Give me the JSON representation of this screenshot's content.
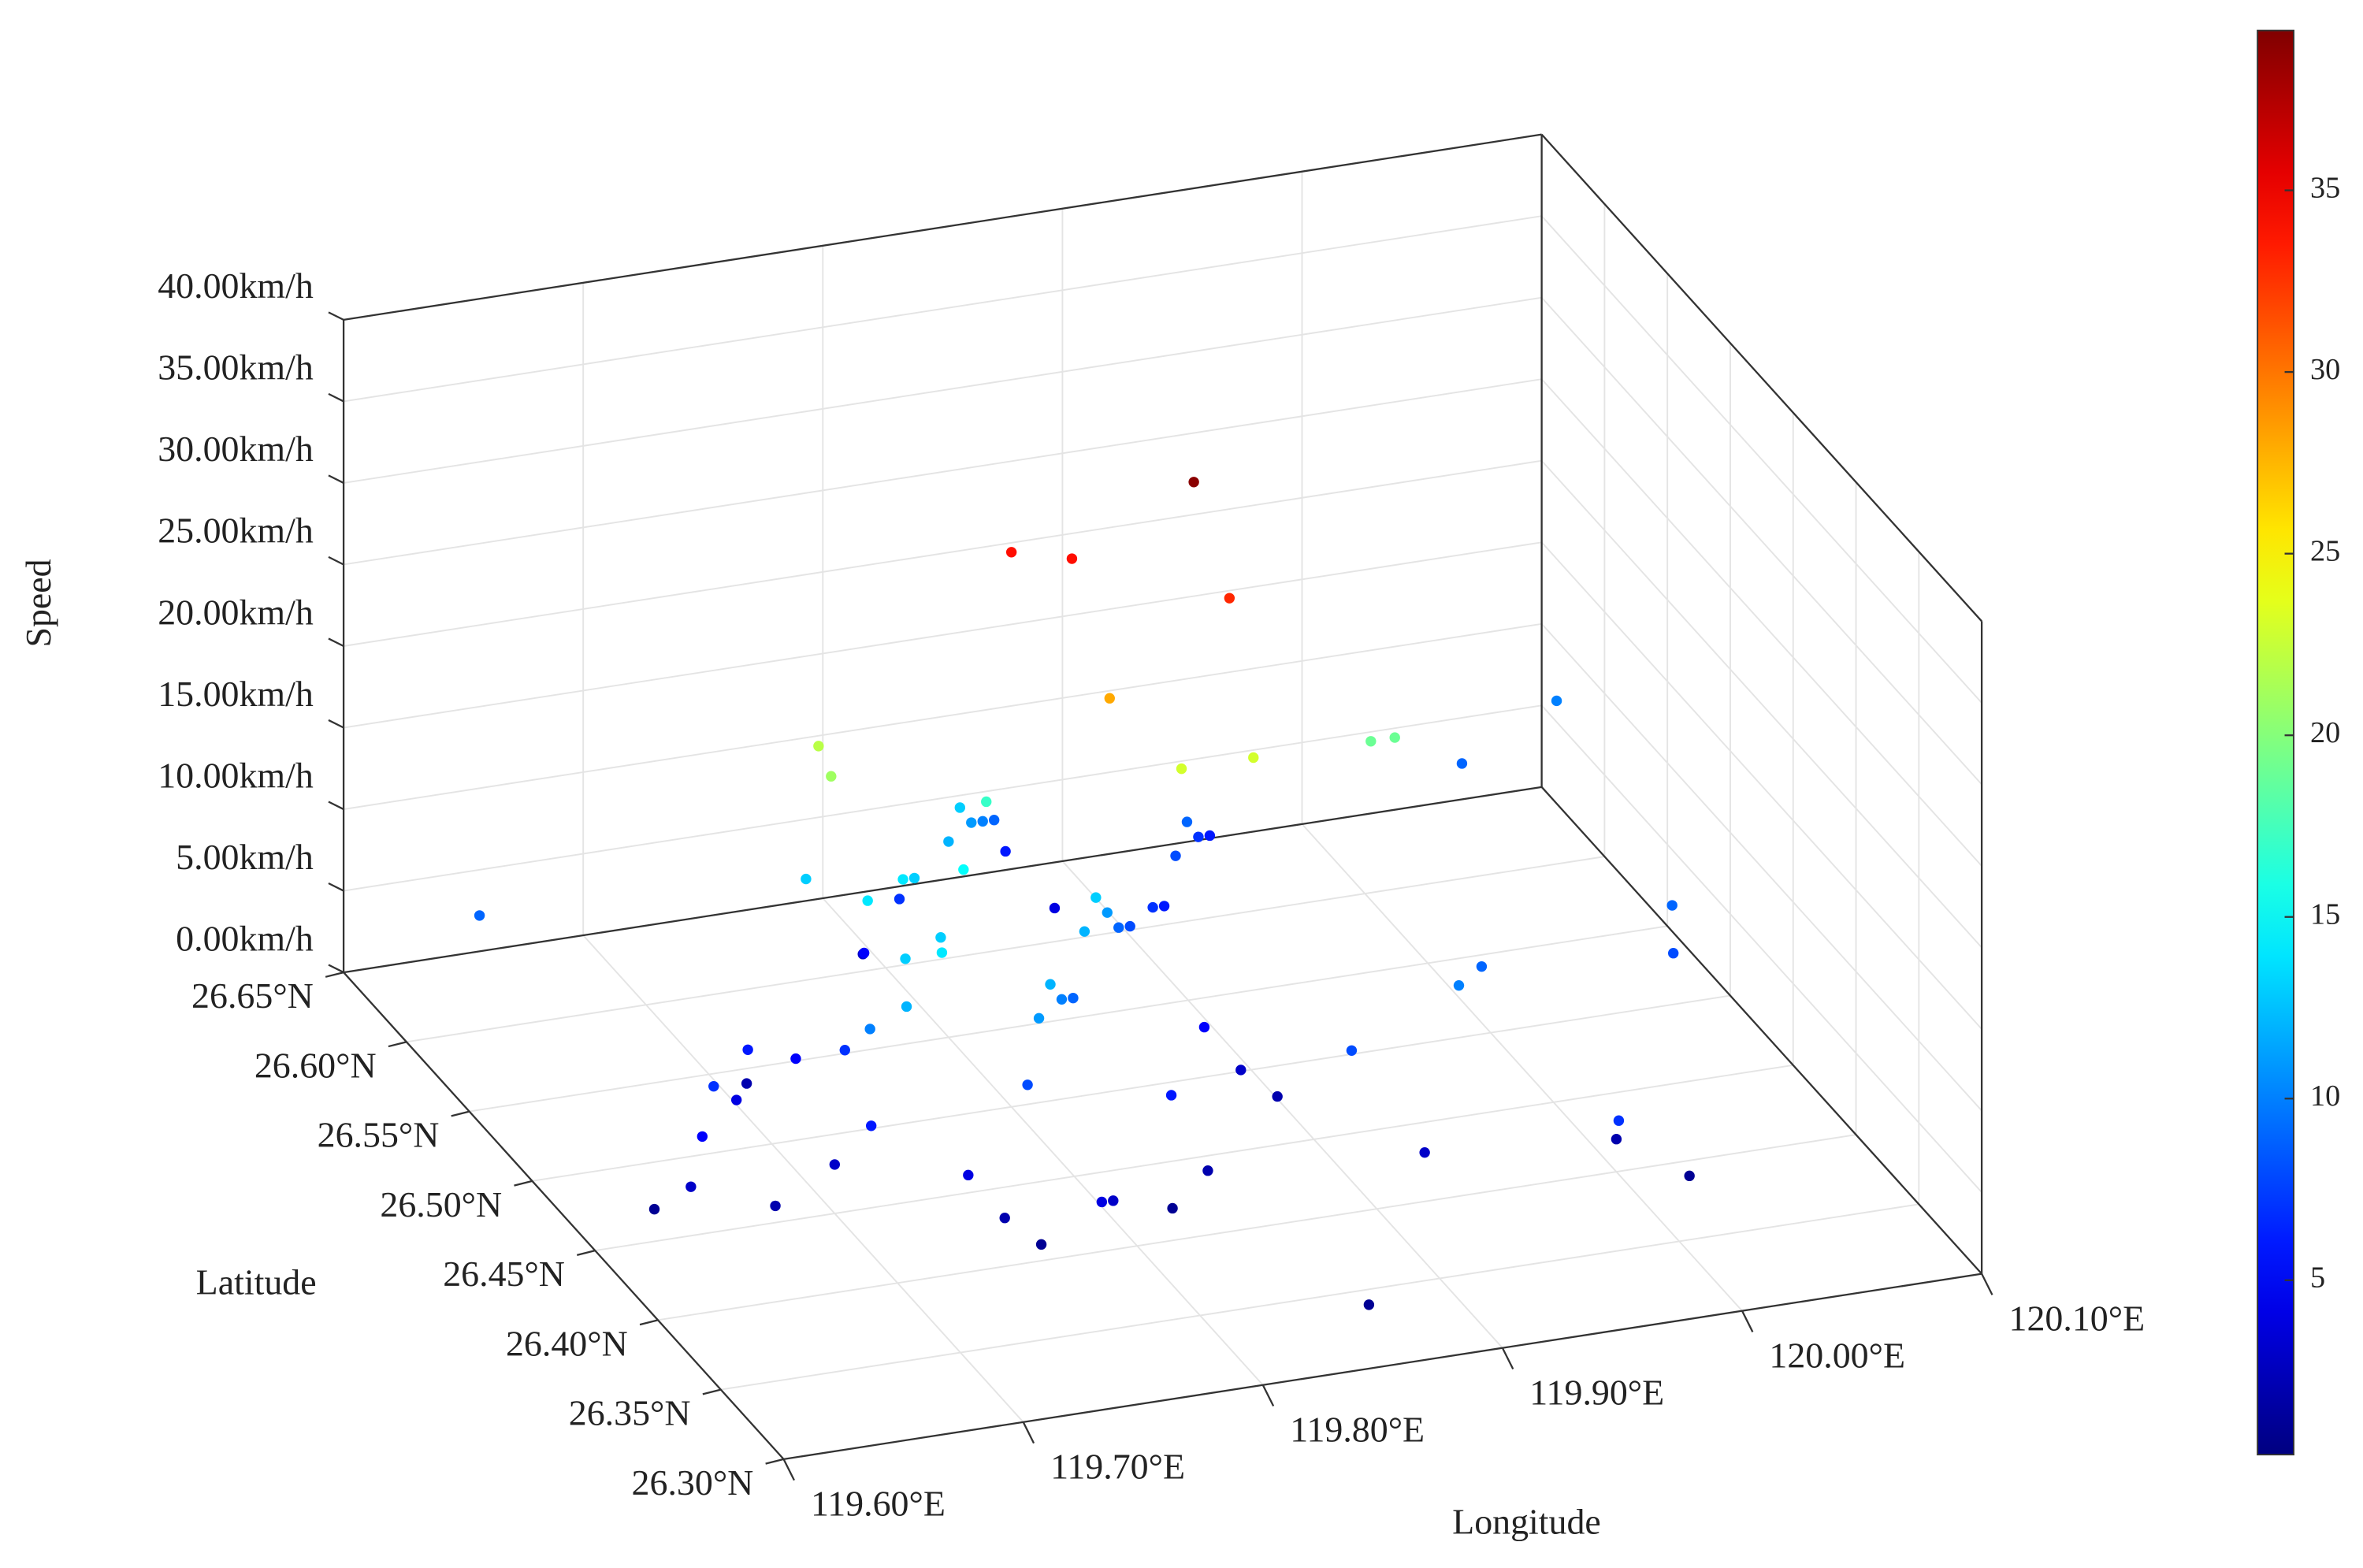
{
  "chart_data": {
    "type": "scatter3d",
    "x_label": "Longitude",
    "y_label": "Latitude",
    "z_label": "Speed",
    "colormap": "jet",
    "grid": true,
    "xlim": [
      119.6,
      120.1
    ],
    "xticks": [
      {
        "value": 119.6,
        "label": "119.60°E"
      },
      {
        "value": 119.7,
        "label": "119.70°E"
      },
      {
        "value": 119.8,
        "label": "119.80°E"
      },
      {
        "value": 119.9,
        "label": "119.90°E"
      },
      {
        "value": 120.0,
        "label": "120.00°E"
      },
      {
        "value": 120.1,
        "label": "120.10°E"
      }
    ],
    "ylim": [
      26.3,
      26.65
    ],
    "yticks": [
      {
        "value": 26.3,
        "label": "26.30°N"
      },
      {
        "value": 26.35,
        "label": "26.35°N"
      },
      {
        "value": 26.4,
        "label": "26.40°N"
      },
      {
        "value": 26.45,
        "label": "26.45°N"
      },
      {
        "value": 26.5,
        "label": "26.50°N"
      },
      {
        "value": 26.55,
        "label": "26.55°N"
      },
      {
        "value": 26.6,
        "label": "26.60°N"
      },
      {
        "value": 26.65,
        "label": "26.65°N"
      }
    ],
    "zlim": [
      0,
      40
    ],
    "zticks": [
      {
        "value": 0,
        "label": "0.00km/h"
      },
      {
        "value": 5,
        "label": "5.00km/h"
      },
      {
        "value": 10,
        "label": "10.00km/h"
      },
      {
        "value": 15,
        "label": "15.00km/h"
      },
      {
        "value": 20,
        "label": "20.00km/h"
      },
      {
        "value": 25,
        "label": "25.00km/h"
      },
      {
        "value": 30,
        "label": "30.00km/h"
      },
      {
        "value": 35,
        "label": "35.00km/h"
      },
      {
        "value": 40,
        "label": "40.00km/h"
      }
    ],
    "clim": [
      0.2,
      39.4
    ],
    "cticks": [
      5,
      10,
      15,
      20,
      25,
      30,
      35
    ],
    "x": [
      119.7,
      119.71,
      119.72,
      119.73,
      119.74,
      119.75,
      119.76,
      119.74,
      119.75,
      119.76,
      119.77,
      119.78,
      119.79,
      119.8,
      119.81,
      119.82,
      119.83,
      119.84,
      119.85,
      119.86,
      119.8,
      119.81,
      119.82,
      119.83,
      119.84,
      119.85,
      119.86,
      119.79,
      119.78,
      119.77,
      119.88,
      119.89,
      119.9,
      119.91,
      119.92,
      119.93,
      119.87,
      119.88,
      119.89,
      119.83,
      119.84,
      119.82,
      119.79,
      119.78,
      119.72,
      119.71,
      119.7,
      119.69,
      119.68,
      119.66,
      119.65,
      119.64,
      119.63,
      119.67,
      119.76,
      119.77,
      119.78,
      119.74,
      119.73,
      119.62,
      119.9,
      119.92,
      119.95,
      119.97,
      120.0,
      120.02,
      120.05,
      120.06,
      120.03,
      120.08,
      119.98,
      119.86,
      119.863,
      119.8,
      119.82,
      119.87,
      119.82,
      119.95,
      119.96,
      119.73,
      119.73,
      119.85,
      119.88,
      119.8
    ],
    "y": [
      26.45,
      26.44,
      26.46,
      26.45,
      26.47,
      26.46,
      26.48,
      26.42,
      26.41,
      26.4,
      26.43,
      26.44,
      26.45,
      26.46,
      26.47,
      26.48,
      26.49,
      26.5,
      26.51,
      26.52,
      26.55,
      26.56,
      26.57,
      26.58,
      26.59,
      26.6,
      26.58,
      26.57,
      26.58,
      26.56,
      26.54,
      26.55,
      26.56,
      26.57,
      26.58,
      26.59,
      26.48,
      26.47,
      26.46,
      26.43,
      26.42,
      26.41,
      26.4,
      26.39,
      26.48,
      26.5,
      26.52,
      26.5,
      26.49,
      26.47,
      26.46,
      26.45,
      26.46,
      26.44,
      26.51,
      26.52,
      26.5,
      26.5,
      26.53,
      26.58,
      26.42,
      26.4,
      26.43,
      26.45,
      26.4,
      26.38,
      26.45,
      26.47,
      26.58,
      26.6,
      26.36,
      26.33,
      26.475,
      26.5,
      26.49,
      26.46,
      26.46,
      26.5,
      26.5,
      26.52,
      26.51,
      26.46,
      26.46,
      26.52
    ],
    "z": [
      3,
      6,
      10,
      12,
      13,
      14,
      13,
      4,
      2,
      1,
      8,
      11,
      12,
      10,
      9,
      12,
      13,
      11,
      9,
      8,
      12,
      13,
      11,
      10,
      9,
      6,
      4,
      7,
      3,
      5,
      7,
      6,
      8,
      9,
      7,
      6,
      5,
      3,
      2,
      6,
      2,
      1,
      3,
      4,
      7,
      5,
      2,
      6,
      4,
      7,
      5,
      3,
      1,
      2,
      14,
      13,
      15,
      14,
      13,
      9,
      8,
      3,
      10,
      9,
      2,
      1,
      8,
      9,
      9,
      10,
      7,
      1,
      39,
      34,
      34,
      33,
      28,
      19,
      19,
      22,
      21,
      23,
      23,
      17
    ]
  }
}
